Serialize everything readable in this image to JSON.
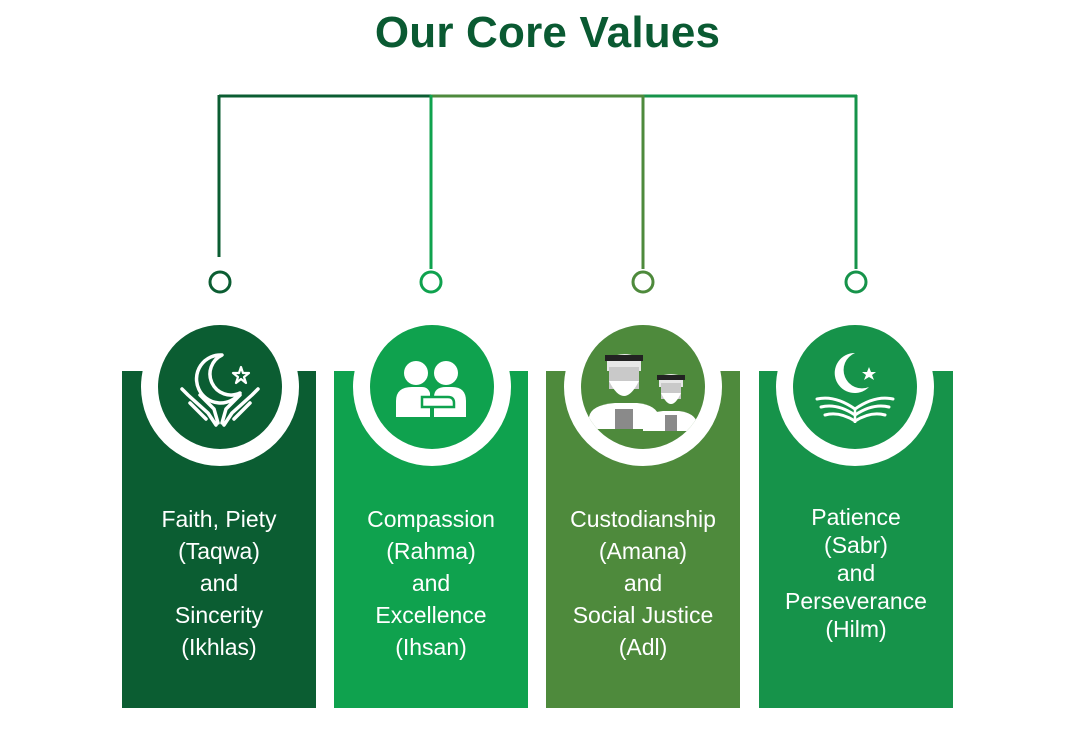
{
  "title": "Our Core Values",
  "colors": {
    "dark_green": "#0b5d32",
    "bright_green": "#0fa24e",
    "olive_green": "#4e8a3c",
    "mid_green": "#16934a",
    "title_green": "#0a5a32"
  },
  "values": [
    {
      "icon": "crescent-star-hands-icon",
      "lines": [
        "Faith, Piety",
        "(Taqwa)",
        "and",
        "Sincerity",
        "(Ikhlas)"
      ]
    },
    {
      "icon": "two-people-embrace-icon",
      "lines": [
        "Compassion",
        "(Rahma)",
        "and",
        "Excellence",
        "(Ihsan)"
      ]
    },
    {
      "icon": "two-elders-icon",
      "lines": [
        "Custodianship",
        "(Amana)",
        "and",
        "Social Justice",
        "(Adl)"
      ]
    },
    {
      "icon": "crescent-star-book-icon",
      "lines": [
        "Patience",
        "(Sabr)",
        "and",
        "Perseverance",
        "(Hilm)"
      ]
    }
  ]
}
